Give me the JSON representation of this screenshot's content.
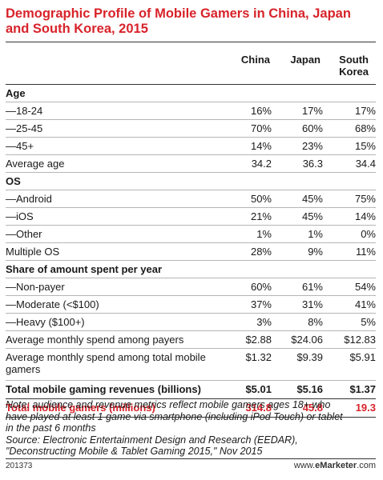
{
  "title": "Demographic Profile of Mobile Gamers in China, Japan and South Korea, 2015",
  "columns": [
    "China",
    "Japan",
    "South Korea"
  ],
  "chart_data": {
    "type": "table",
    "columns": [
      "China",
      "Japan",
      "South Korea"
    ],
    "sections": [
      {
        "heading": "Age",
        "rows": [
          {
            "label": "—18-24",
            "values": [
              "16%",
              "17%",
              "17%"
            ]
          },
          {
            "label": "—25-45",
            "values": [
              "70%",
              "60%",
              "68%"
            ]
          },
          {
            "label": "—45+",
            "values": [
              "14%",
              "23%",
              "15%"
            ]
          },
          {
            "label": "Average age",
            "values": [
              "34.2",
              "36.3",
              "34.4"
            ]
          }
        ]
      },
      {
        "heading": "OS",
        "rows": [
          {
            "label": "—Android",
            "values": [
              "50%",
              "45%",
              "75%"
            ]
          },
          {
            "label": "—iOS",
            "values": [
              "21%",
              "45%",
              "14%"
            ]
          },
          {
            "label": "—Other",
            "values": [
              "1%",
              "1%",
              "0%"
            ]
          },
          {
            "label": "Multiple OS",
            "values": [
              "28%",
              "9%",
              "11%"
            ]
          }
        ]
      },
      {
        "heading": "Share of amount spent per year",
        "rows": [
          {
            "label": "—Non-payer",
            "values": [
              "60%",
              "61%",
              "54%"
            ]
          },
          {
            "label": "—Moderate (<$100)",
            "values": [
              "37%",
              "31%",
              "41%"
            ]
          },
          {
            "label": "—Heavy ($100+)",
            "values": [
              "3%",
              "8%",
              "5%"
            ]
          },
          {
            "label": "Average monthly spend among payers",
            "values": [
              "$2.88",
              "$24.06",
              "$12.83"
            ]
          },
          {
            "label": "Average monthly spend among total mobile gamers",
            "values": [
              "$1.32",
              "$9.39",
              "$5.91"
            ]
          }
        ]
      }
    ],
    "totals": [
      {
        "label": "Total mobile gaming revenues (billions)",
        "values": [
          "$5.01",
          "$5.16",
          "$1.37"
        ]
      },
      {
        "label": "Total mobile gamers (millions)",
        "values": [
          "314.8",
          "45.8",
          "19.3"
        ]
      }
    ]
  },
  "note_lines": [
    "Note: audience and revenue metrics reflect mobile gamers ages 18+ who",
    "have played at least 1 game via smartphone (including iPod Touch) or tablet",
    "in the past 6 months",
    "Source: Electronic Entertainment Design and Research (EEDAR),",
    "\"Deconstructing Mobile & Tablet Gaming 2015,\" Nov 2015"
  ],
  "footer": {
    "id": "201373",
    "brand_prefix": "www.",
    "brand_name": "eMarketer",
    "brand_suffix": ".com"
  },
  "colors": {
    "accent": "#d8232a",
    "text": "#1a1a1a",
    "rule": "#b5b5b5"
  }
}
